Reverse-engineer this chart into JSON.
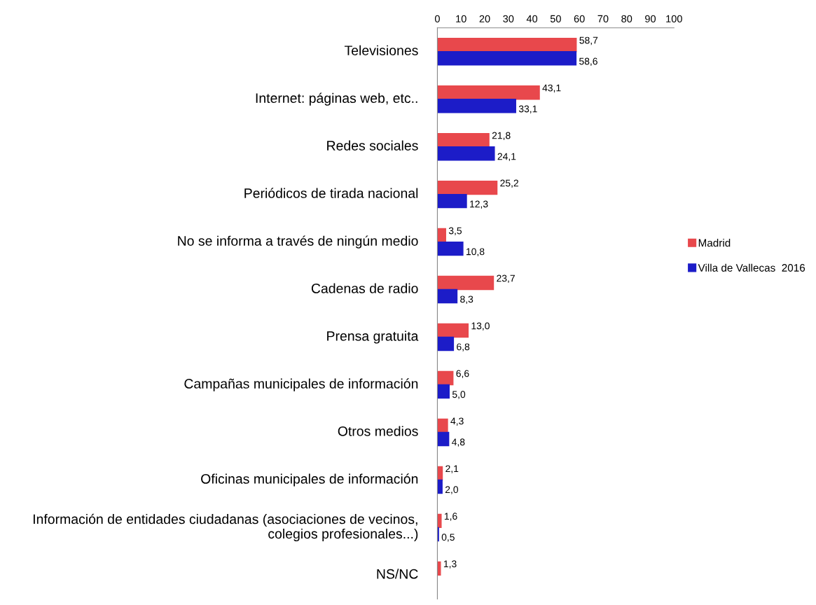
{
  "chart_data": {
    "type": "bar",
    "orientation": "horizontal",
    "categories": [
      "Televisiones",
      "Internet: páginas web, etc..",
      "Redes sociales",
      "Periódicos de tirada nacional",
      "No se informa a través de ningún medio",
      "Cadenas de radio",
      "Prensa gratuita",
      "Campañas municipales de información",
      "Otros medios",
      "Oficinas municipales de información",
      "Información de entidades ciudadanas (asociaciones de vecinos, colegios profesionales...)",
      "NS/NC"
    ],
    "series": [
      {
        "name": "Madrid",
        "color": "#e8484c",
        "values": [
          58.7,
          43.1,
          21.8,
          25.2,
          3.5,
          23.7,
          13.0,
          6.6,
          4.3,
          2.1,
          1.6,
          1.3
        ],
        "value_labels": [
          "58,7",
          "43,1",
          "21,8",
          "25,2",
          "3,5",
          "23,7",
          "13,0",
          "6,6",
          "4,3",
          "2,1",
          "1,6",
          "1,3"
        ]
      },
      {
        "name": "Villa de Vallecas  2016",
        "color": "#1c1cc8",
        "values": [
          58.6,
          33.1,
          24.1,
          12.3,
          10.8,
          8.3,
          6.8,
          5.0,
          4.8,
          2.0,
          0.5,
          null
        ],
        "value_labels": [
          "58,6",
          "33,1",
          "24,1",
          "12,3",
          "10,8",
          "8,3",
          "6,8",
          "5,0",
          "4,8",
          "2,0",
          "0,5",
          null
        ]
      }
    ],
    "xlim": [
      0,
      100
    ],
    "xticks": [
      0,
      10,
      20,
      30,
      40,
      50,
      60,
      70,
      80,
      90,
      100
    ],
    "grid": false,
    "legend": "right"
  }
}
